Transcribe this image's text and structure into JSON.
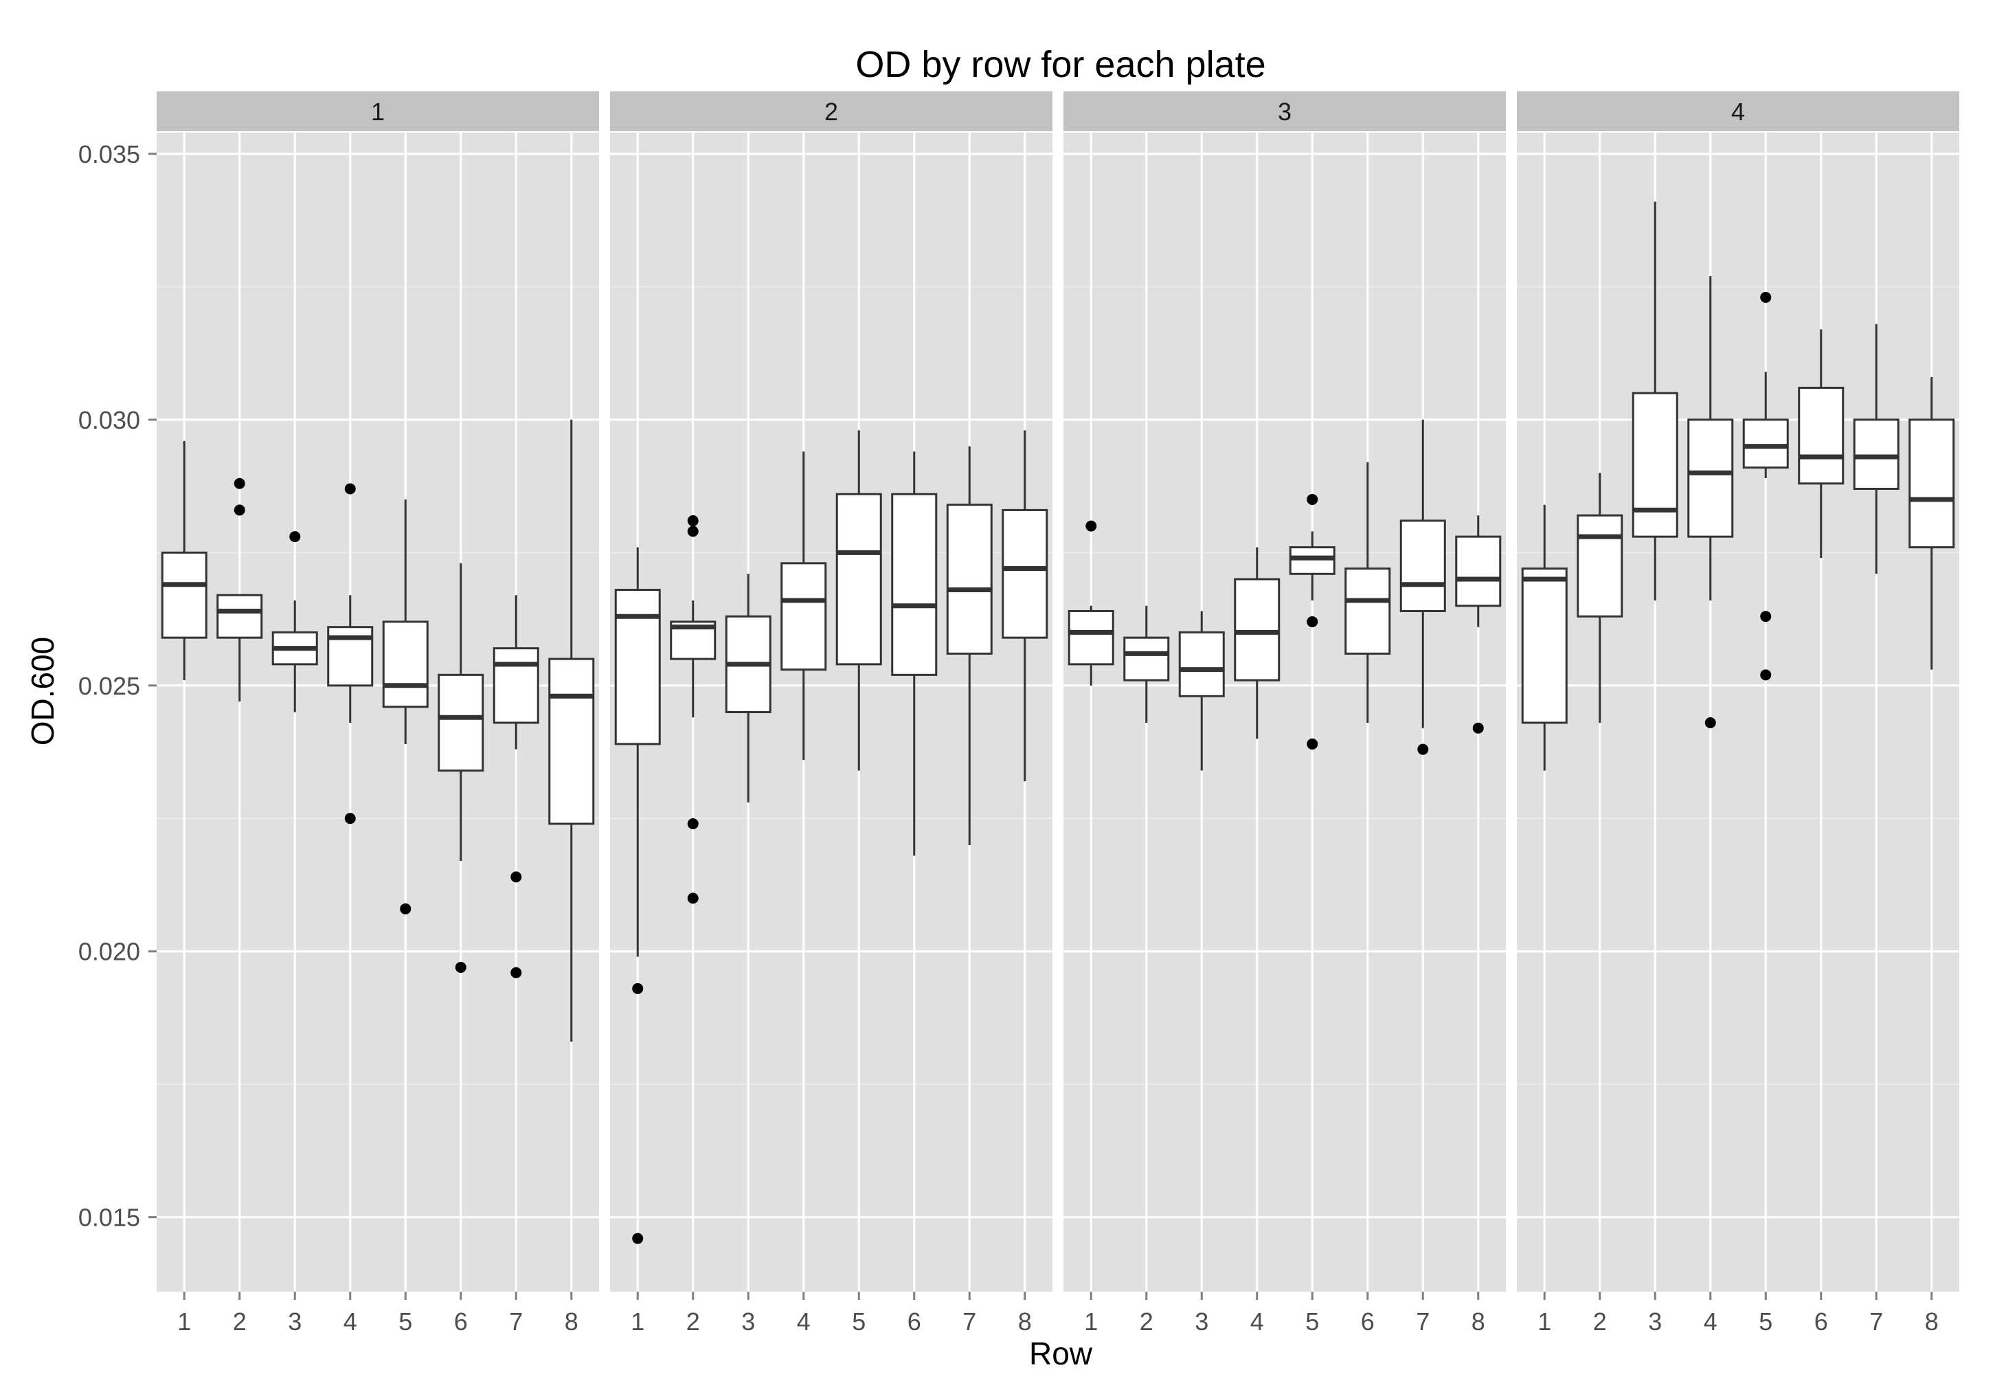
{
  "chart_data": {
    "type": "boxplot",
    "title": "OD by row for each plate",
    "xlabel": "Row",
    "ylabel": "OD.600",
    "ylim": [
      0.0136,
      0.0354
    ],
    "yticks": [
      "0.015",
      "0.020",
      "0.025",
      "0.030",
      "0.035"
    ],
    "ytick_values": [
      0.015,
      0.02,
      0.025,
      0.03,
      0.035
    ],
    "categories": [
      "1",
      "2",
      "3",
      "4",
      "5",
      "6",
      "7",
      "8"
    ],
    "grid": true,
    "legend": "none",
    "colors": {
      "panel_background": "#e0e0e0",
      "strip_background": "#c2c2c2",
      "grid_major": "#ffffff",
      "grid_minor": "#eeeeee",
      "box_fill": "#ffffff",
      "box_stroke": "#333333",
      "outlier": "#000000"
    },
    "panels": [
      {
        "label": "1",
        "boxes": [
          {
            "row": "1",
            "whisker_low": 0.0251,
            "q1": 0.0259,
            "median": 0.0269,
            "q3": 0.0275,
            "whisker_high": 0.0296,
            "outliers": []
          },
          {
            "row": "2",
            "whisker_low": 0.0247,
            "q1": 0.0259,
            "median": 0.0264,
            "q3": 0.0267,
            "whisker_high": 0.0267,
            "outliers": [
              0.0288,
              0.0283
            ]
          },
          {
            "row": "3",
            "whisker_low": 0.0245,
            "q1": 0.0254,
            "median": 0.0257,
            "q3": 0.026,
            "whisker_high": 0.0266,
            "outliers": [
              0.0278
            ]
          },
          {
            "row": "4",
            "whisker_low": 0.0243,
            "q1": 0.025,
            "median": 0.0259,
            "q3": 0.0261,
            "whisker_high": 0.0267,
            "outliers": [
              0.0287,
              0.0225
            ]
          },
          {
            "row": "5",
            "whisker_low": 0.0239,
            "q1": 0.0246,
            "median": 0.025,
            "q3": 0.0262,
            "whisker_high": 0.0285,
            "outliers": [
              0.0208
            ]
          },
          {
            "row": "6",
            "whisker_low": 0.0217,
            "q1": 0.0234,
            "median": 0.0244,
            "q3": 0.0252,
            "whisker_high": 0.0273,
            "outliers": [
              0.0197
            ]
          },
          {
            "row": "7",
            "whisker_low": 0.0238,
            "q1": 0.0243,
            "median": 0.0254,
            "q3": 0.0257,
            "whisker_high": 0.0267,
            "outliers": [
              0.0214,
              0.0196
            ]
          },
          {
            "row": "8",
            "whisker_low": 0.0183,
            "q1": 0.0224,
            "median": 0.0248,
            "q3": 0.0255,
            "whisker_high": 0.03,
            "outliers": []
          }
        ]
      },
      {
        "label": "2",
        "boxes": [
          {
            "row": "1",
            "whisker_low": 0.0199,
            "q1": 0.0239,
            "median": 0.0263,
            "q3": 0.0268,
            "whisker_high": 0.0276,
            "outliers": [
              0.0193,
              0.0146
            ]
          },
          {
            "row": "2",
            "whisker_low": 0.0244,
            "q1": 0.0255,
            "median": 0.0261,
            "q3": 0.0262,
            "whisker_high": 0.0266,
            "outliers": [
              0.0281,
              0.0279,
              0.0224,
              0.021
            ]
          },
          {
            "row": "3",
            "whisker_low": 0.0228,
            "q1": 0.0245,
            "median": 0.0254,
            "q3": 0.0263,
            "whisker_high": 0.0271,
            "outliers": []
          },
          {
            "row": "4",
            "whisker_low": 0.0236,
            "q1": 0.0253,
            "median": 0.0266,
            "q3": 0.0273,
            "whisker_high": 0.0294,
            "outliers": []
          },
          {
            "row": "5",
            "whisker_low": 0.0234,
            "q1": 0.0254,
            "median": 0.0275,
            "q3": 0.0286,
            "whisker_high": 0.0298,
            "outliers": []
          },
          {
            "row": "6",
            "whisker_low": 0.0218,
            "q1": 0.0252,
            "median": 0.0265,
            "q3": 0.0286,
            "whisker_high": 0.0294,
            "outliers": []
          },
          {
            "row": "7",
            "whisker_low": 0.022,
            "q1": 0.0256,
            "median": 0.0268,
            "q3": 0.0284,
            "whisker_high": 0.0295,
            "outliers": []
          },
          {
            "row": "8",
            "whisker_low": 0.0232,
            "q1": 0.0259,
            "median": 0.0272,
            "q3": 0.0283,
            "whisker_high": 0.0298,
            "outliers": []
          }
        ]
      },
      {
        "label": "3",
        "boxes": [
          {
            "row": "1",
            "whisker_low": 0.025,
            "q1": 0.0254,
            "median": 0.026,
            "q3": 0.0264,
            "whisker_high": 0.0265,
            "outliers": [
              0.028
            ]
          },
          {
            "row": "2",
            "whisker_low": 0.0243,
            "q1": 0.0251,
            "median": 0.0256,
            "q3": 0.0259,
            "whisker_high": 0.0265,
            "outliers": []
          },
          {
            "row": "3",
            "whisker_low": 0.0234,
            "q1": 0.0248,
            "median": 0.0253,
            "q3": 0.026,
            "whisker_high": 0.0264,
            "outliers": []
          },
          {
            "row": "4",
            "whisker_low": 0.024,
            "q1": 0.0251,
            "median": 0.026,
            "q3": 0.027,
            "whisker_high": 0.0276,
            "outliers": []
          },
          {
            "row": "5",
            "whisker_low": 0.0266,
            "q1": 0.0271,
            "median": 0.0274,
            "q3": 0.0276,
            "whisker_high": 0.0279,
            "outliers": [
              0.0285,
              0.0262,
              0.0239
            ]
          },
          {
            "row": "6",
            "whisker_low": 0.0243,
            "q1": 0.0256,
            "median": 0.0266,
            "q3": 0.0272,
            "whisker_high": 0.0292,
            "outliers": []
          },
          {
            "row": "7",
            "whisker_low": 0.0242,
            "q1": 0.0264,
            "median": 0.0269,
            "q3": 0.0281,
            "whisker_high": 0.03,
            "outliers": [
              0.0238
            ]
          },
          {
            "row": "8",
            "whisker_low": 0.0261,
            "q1": 0.0265,
            "median": 0.027,
            "q3": 0.0278,
            "whisker_high": 0.0282,
            "outliers": [
              0.0242
            ]
          }
        ]
      },
      {
        "label": "4",
        "boxes": [
          {
            "row": "1",
            "whisker_low": 0.0234,
            "q1": 0.0243,
            "median": 0.027,
            "q3": 0.0272,
            "whisker_high": 0.0284,
            "outliers": []
          },
          {
            "row": "2",
            "whisker_low": 0.0243,
            "q1": 0.0263,
            "median": 0.0278,
            "q3": 0.0282,
            "whisker_high": 0.029,
            "outliers": []
          },
          {
            "row": "3",
            "whisker_low": 0.0266,
            "q1": 0.0278,
            "median": 0.0283,
            "q3": 0.0305,
            "whisker_high": 0.0341,
            "outliers": []
          },
          {
            "row": "4",
            "whisker_low": 0.0266,
            "q1": 0.0278,
            "median": 0.029,
            "q3": 0.03,
            "whisker_high": 0.0327,
            "outliers": [
              0.0243
            ]
          },
          {
            "row": "5",
            "whisker_low": 0.0289,
            "q1": 0.0291,
            "median": 0.0295,
            "q3": 0.03,
            "whisker_high": 0.0309,
            "outliers": [
              0.0323,
              0.0263,
              0.0252
            ]
          },
          {
            "row": "6",
            "whisker_low": 0.0274,
            "q1": 0.0288,
            "median": 0.0293,
            "q3": 0.0306,
            "whisker_high": 0.0317,
            "outliers": []
          },
          {
            "row": "7",
            "whisker_low": 0.0271,
            "q1": 0.0287,
            "median": 0.0293,
            "q3": 0.03,
            "whisker_high": 0.0318,
            "outliers": []
          },
          {
            "row": "8",
            "whisker_low": 0.0253,
            "q1": 0.0276,
            "median": 0.0285,
            "q3": 0.03,
            "whisker_high": 0.0308,
            "outliers": []
          }
        ]
      }
    ]
  }
}
